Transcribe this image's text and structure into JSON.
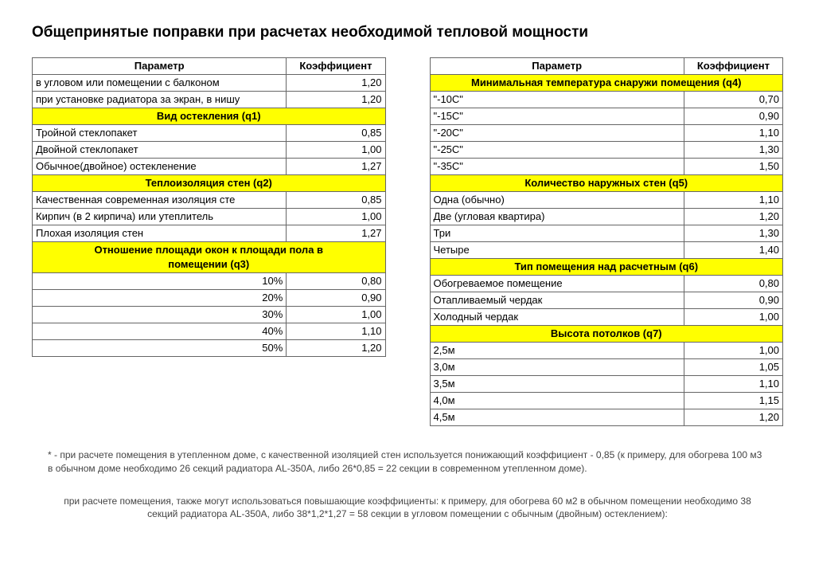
{
  "title": "Общепринятые поправки при расчетах необходимой тепловой мощности",
  "headers": {
    "param": "Параметр",
    "coef": "Коэффициент"
  },
  "left": {
    "top_rows": [
      {
        "p": "в угловом или помещении с балконом",
        "c": "1,20"
      },
      {
        "p": "при установке радиатора за экран, в нишу",
        "c": "1,20"
      }
    ],
    "q1_title": "Вид остекления (q1)",
    "q1": [
      {
        "p": "Тройной стеклопакет",
        "c": "0,85"
      },
      {
        "p": "Двойной стеклопакет",
        "c": "1,00"
      },
      {
        "p": "Обычное(двойное) остекленение",
        "c": "1,27"
      }
    ],
    "q2_title": "Теплоизоляция стен (q2)",
    "q2": [
      {
        "p": "Качественная современная изоляция сте",
        "c": "0,85"
      },
      {
        "p": "Кирпич (в 2 кирпича) или утеплитель",
        "c": "1,00"
      },
      {
        "p": "Плохая изоляция стен",
        "c": "1,27"
      }
    ],
    "q3_title_l1": "Отношение площади окон к площади пола в",
    "q3_title_l2": "помещении (q3)",
    "q3": [
      {
        "p": "10%",
        "c": "0,80"
      },
      {
        "p": "20%",
        "c": "0,90"
      },
      {
        "p": "30%",
        "c": "1,00"
      },
      {
        "p": "40%",
        "c": "1,10"
      },
      {
        "p": "50%",
        "c": "1,20"
      }
    ]
  },
  "right": {
    "q4_title": "Минимальная температура  снаружи помещения (q4)",
    "q4": [
      {
        "p": "\"-10C\"",
        "c": "0,70"
      },
      {
        "p": "\"-15C\"",
        "c": "0,90"
      },
      {
        "p": "\"-20C\"",
        "c": "1,10"
      },
      {
        "p": "\"-25C\"",
        "c": "1,30"
      },
      {
        "p": "\"-35C\"",
        "c": "1,50"
      }
    ],
    "q5_title": "Количество наружных стен (q5)",
    "q5": [
      {
        "p": "Одна (обычно)",
        "c": "1,10"
      },
      {
        "p": "Две (угловая квартира)",
        "c": "1,20"
      },
      {
        "p": "Три",
        "c": "1,30"
      },
      {
        "p": "Четыре",
        "c": "1,40"
      }
    ],
    "q6_title": "Тип помещения над расчетным (q6)",
    "q6": [
      {
        "p": "Обогреваемое помещение",
        "c": "0,80"
      },
      {
        "p": "Отапливаемый чердак",
        "c": "0,90"
      },
      {
        "p": "Холодный чердак",
        "c": "1,00"
      }
    ],
    "q7_title": "Высота потолков (q7)",
    "q7": [
      {
        "p": "2,5м",
        "c": "1,00"
      },
      {
        "p": "3,0м",
        "c": "1,05"
      },
      {
        "p": "3,5м",
        "c": "1,10"
      },
      {
        "p": "4,0м",
        "c": "1,15"
      },
      {
        "p": "4,5м",
        "c": "1,20"
      }
    ]
  },
  "footnotes": {
    "f1": "* - при расчете помещения в утепленном доме, с качественной изоляцией стен используется понижающий коэффициент - 0,85 (к примеру, для обогрева 100 м3 в обычном доме необходимо 26 секций радиатора AL-350A, либо 26*0,85 = 22 секции в современном утепленном доме).",
    "f2": "при расчете помещения, также могут использоваться повышающие коэффициенты: к примеру, для обогрева 60 м2 в обычном помещении необходимо 38 секций радиатора AL-350A, либо 38*1,2*1,27 = 58 секции в угловом помещении с обычным (двойным) остеклением):"
  },
  "colors": {
    "section_bg": "#ffff00",
    "border": "#666666",
    "text": "#000000",
    "footnote": "#444444"
  }
}
